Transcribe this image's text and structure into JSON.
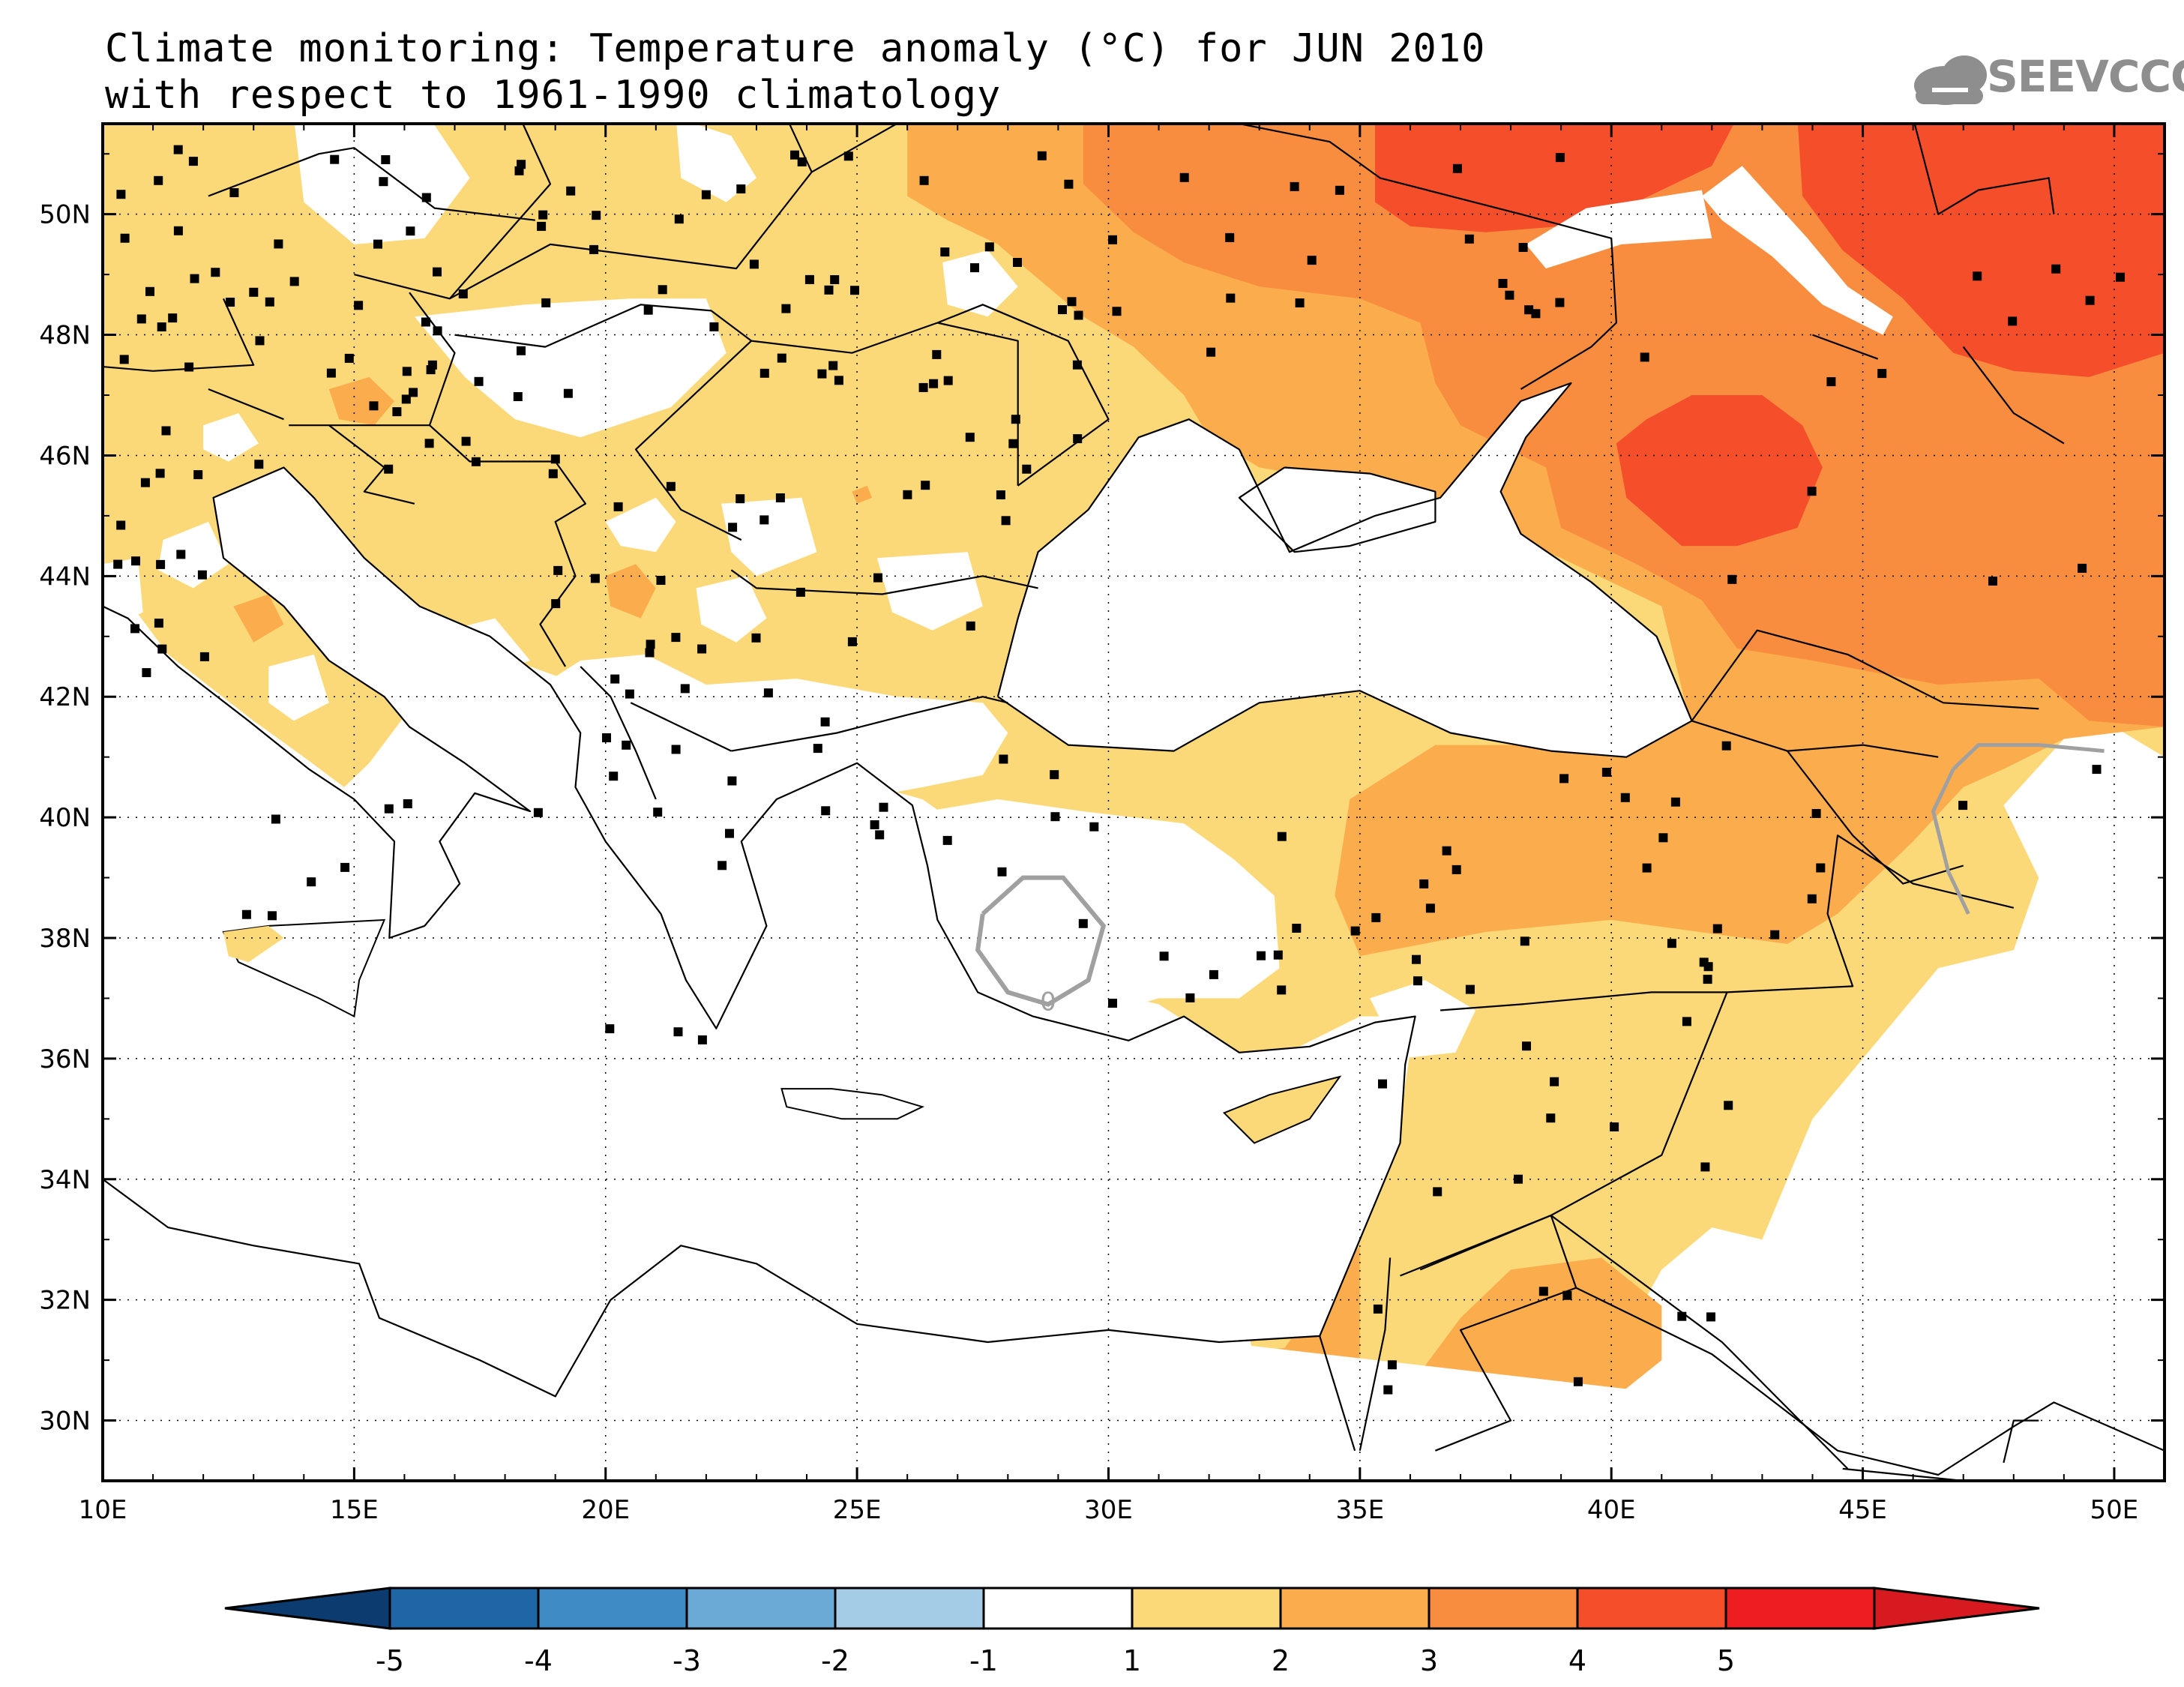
{
  "title": {
    "line1": "Climate monitoring: Temperature anomaly (°C) for JUN 2010",
    "line2": "with respect to 1961-1990 climatology"
  },
  "logo": {
    "text": "SEEVCCC",
    "icon": "cloud-icon"
  },
  "map": {
    "lon_range": [
      10,
      51
    ],
    "lat_range": [
      29,
      51.5
    ],
    "lon_ticks": [
      "10E",
      "15E",
      "20E",
      "25E",
      "30E",
      "35E",
      "40E",
      "45E",
      "50E"
    ],
    "lat_ticks": [
      "30N",
      "32N",
      "34N",
      "36N",
      "38N",
      "40N",
      "42N",
      "44N",
      "46N",
      "48N",
      "50N"
    ],
    "contour_label": "0",
    "colors": {
      "ocean": "#ffffff",
      "anom_1_2": "#fcd978",
      "anom_2_3": "#fbad4d",
      "anom_3_4": "#f98d3f",
      "anom_4_5": "#f54e2b",
      "coast": "#000000",
      "station": "#000000",
      "contour": "#a0a0a0"
    }
  },
  "colorbar": {
    "tick_labels": [
      "-5",
      "-4",
      "-3",
      "-2",
      "-1",
      "1",
      "2",
      "3",
      "4",
      "5"
    ],
    "colors": [
      "#0b3b6f",
      "#1e66a5",
      "#3f8bc6",
      "#6ba9d6",
      "#a5cce6",
      "#ffffff",
      "#fcd978",
      "#fbad4d",
      "#f98d3f",
      "#f54e2b",
      "#ee1d22",
      "#d71920"
    ]
  }
}
